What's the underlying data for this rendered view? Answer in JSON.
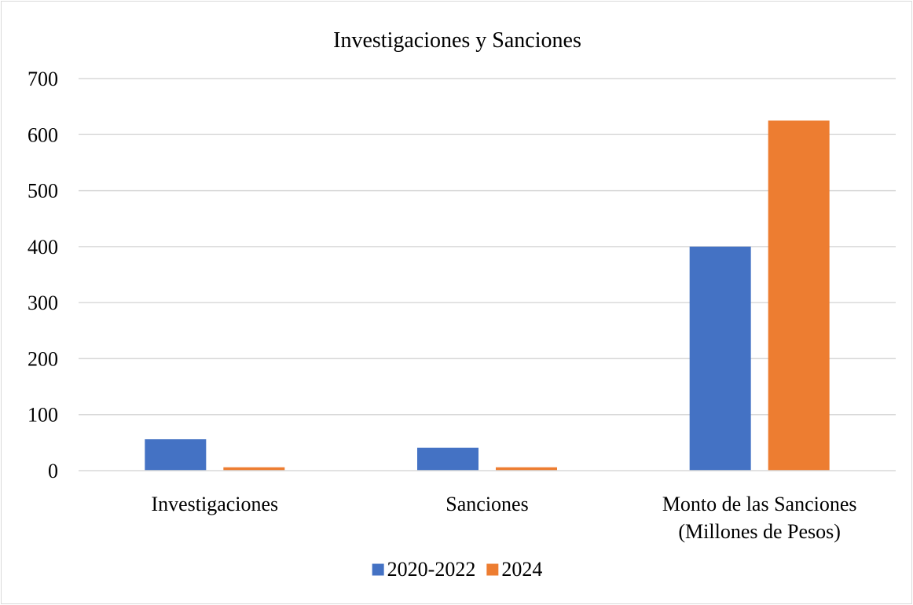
{
  "chart_data": {
    "type": "bar",
    "title": "Investigaciones y Sanciones",
    "xlabel": "",
    "ylabel": "",
    "categories": [
      [
        "Investigaciones"
      ],
      [
        "Sanciones"
      ],
      [
        "Monto de las Sanciones",
        "(Millones de Pesos)"
      ]
    ],
    "series": [
      {
        "name": "2020-2022",
        "color": "#4472C4",
        "values": [
          56,
          41,
          400
        ]
      },
      {
        "name": "2024",
        "color": "#ED7D31",
        "values": [
          6,
          6,
          625
        ]
      }
    ],
    "ylim": [
      0,
      700
    ],
    "yticks": [
      0,
      100,
      200,
      300,
      400,
      500,
      600,
      700
    ],
    "grid": true,
    "legend_position": "bottom"
  }
}
